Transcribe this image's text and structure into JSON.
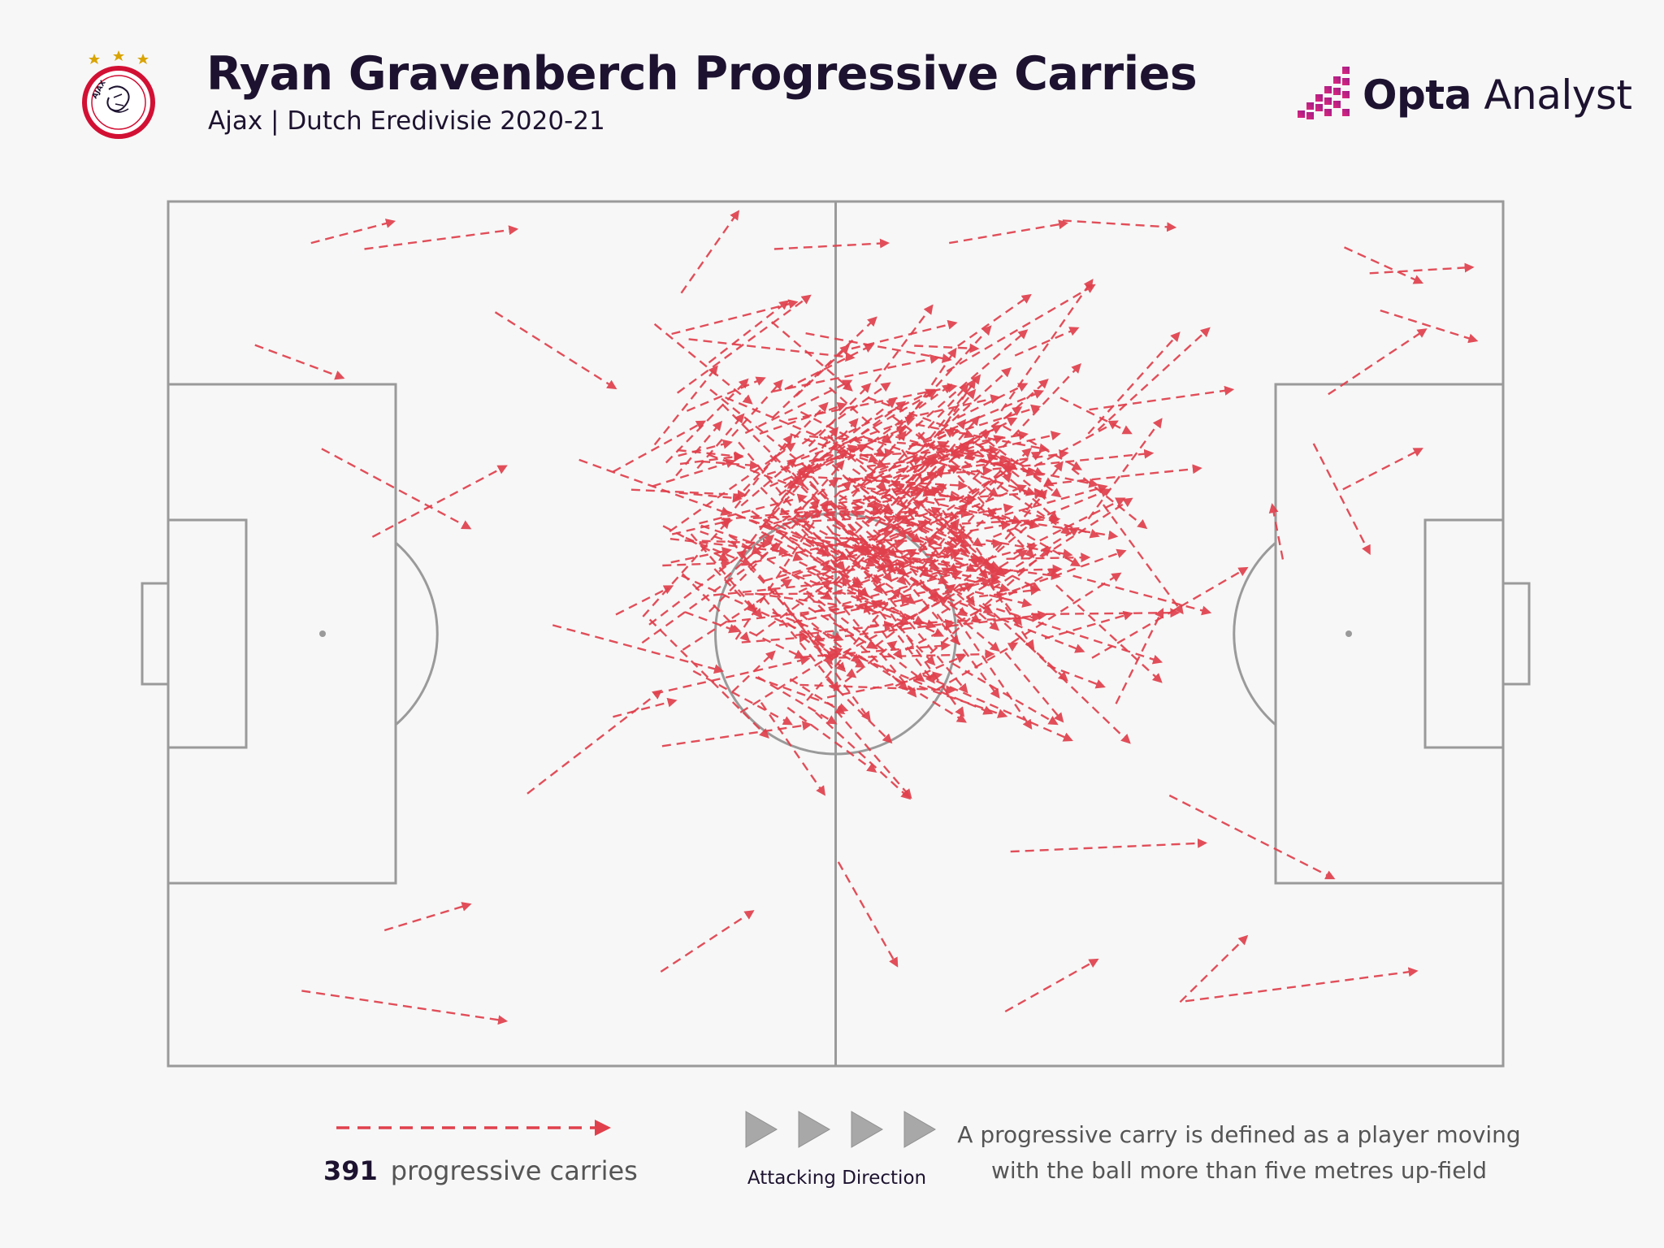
{
  "header": {
    "title": "Ryan Gravenberch Progressive Carries",
    "subtitle": "Ajax | Dutch Eredivisie 2020-21",
    "brand_name_bold": "Opta",
    "brand_name_light": "Analyst",
    "badge_text": "AJAX"
  },
  "colors": {
    "background": "#f7f7f7",
    "title": "#1d1330",
    "arrow": "#e0404c",
    "pitch_lines": "#9a9a9a",
    "direction_arrows": "#a8a8a8",
    "brand_gradient_start": "#e3287a",
    "brand_gradient_end": "#9b1c8c"
  },
  "legend": {
    "count": "391",
    "count_label": "progressive carries",
    "direction_label": "Attacking Direction",
    "definition": "A progressive carry is defined as a player moving with the ball more than five metres up-field"
  },
  "chart_data": {
    "type": "flow-map",
    "description_units": "pitch coordinates 0-100 along length (x, attacking right) and 0-100 across width (y, top to bottom)",
    "total_carries": 391,
    "pitch": {
      "length_units": 100,
      "width_units": 100,
      "attacking_direction": "right"
    },
    "sample_carries": [
      {
        "x1": 10.7,
        "y1": 4.8,
        "x2": 16.9,
        "y2": 2.3
      },
      {
        "x1": 14.7,
        "y1": 5.5,
        "x2": 26.1,
        "y2": 3.2
      },
      {
        "x1": 6.5,
        "y1": 16.6,
        "x2": 13.1,
        "y2": 20.4
      },
      {
        "x1": 11.5,
        "y1": 28.6,
        "x2": 22.6,
        "y2": 37.8
      },
      {
        "x1": 15.3,
        "y1": 38.8,
        "x2": 25.3,
        "y2": 30.6
      },
      {
        "x1": 16.2,
        "y1": 84.3,
        "x2": 22.6,
        "y2": 81.3
      },
      {
        "x1": 10.0,
        "y1": 91.3,
        "x2": 25.3,
        "y2": 94.8
      },
      {
        "x1": 90.0,
        "y1": 8.3,
        "x2": 97.7,
        "y2": 7.6
      },
      {
        "x1": 88.1,
        "y1": 5.3,
        "x2": 93.9,
        "y2": 9.4
      },
      {
        "x1": 90.8,
        "y1": 12.6,
        "x2": 98.0,
        "y2": 16.1
      },
      {
        "x1": 86.9,
        "y1": 22.3,
        "x2": 94.2,
        "y2": 14.8
      },
      {
        "x1": 88.0,
        "y1": 33.3,
        "x2": 93.9,
        "y2": 28.6
      },
      {
        "x1": 85.8,
        "y1": 28.0,
        "x2": 90.0,
        "y2": 40.7
      },
      {
        "x1": 83.5,
        "y1": 41.4,
        "x2": 82.7,
        "y2": 35.1
      },
      {
        "x1": 75.0,
        "y1": 68.7,
        "x2": 87.3,
        "y2": 78.3
      },
      {
        "x1": 63.1,
        "y1": 75.2,
        "x2": 77.7,
        "y2": 74.2
      },
      {
        "x1": 75.8,
        "y1": 92.6,
        "x2": 80.8,
        "y2": 85.0
      },
      {
        "x1": 76.2,
        "y1": 92.5,
        "x2": 93.5,
        "y2": 89.0
      },
      {
        "x1": 62.7,
        "y1": 93.7,
        "x2": 69.6,
        "y2": 87.7
      },
      {
        "x1": 50.2,
        "y1": 76.4,
        "x2": 54.6,
        "y2": 88.4
      },
      {
        "x1": 45.4,
        "y1": 5.5,
        "x2": 53.9,
        "y2": 4.8
      },
      {
        "x1": 58.5,
        "y1": 4.8,
        "x2": 67.3,
        "y2": 2.5
      },
      {
        "x1": 67.0,
        "y1": 2.2,
        "x2": 75.4,
        "y2": 3.0
      },
      {
        "x1": 24.5,
        "y1": 12.8,
        "x2": 33.5,
        "y2": 21.6
      },
      {
        "x1": 26.9,
        "y1": 68.5,
        "x2": 36.9,
        "y2": 56.6
      },
      {
        "x1": 28.8,
        "y1": 49.0,
        "x2": 41.5,
        "y2": 54.3
      },
      {
        "x1": 37.0,
        "y1": 63.0,
        "x2": 48.1,
        "y2": 60.5
      },
      {
        "x1": 36.9,
        "y1": 89.1,
        "x2": 43.8,
        "y2": 82.1
      },
      {
        "x1": 69.2,
        "y1": 52.8,
        "x2": 80.8,
        "y2": 42.4
      },
      {
        "x1": 71.0,
        "y1": 58.1,
        "x2": 74.5,
        "y2": 47.2
      }
    ]
  }
}
